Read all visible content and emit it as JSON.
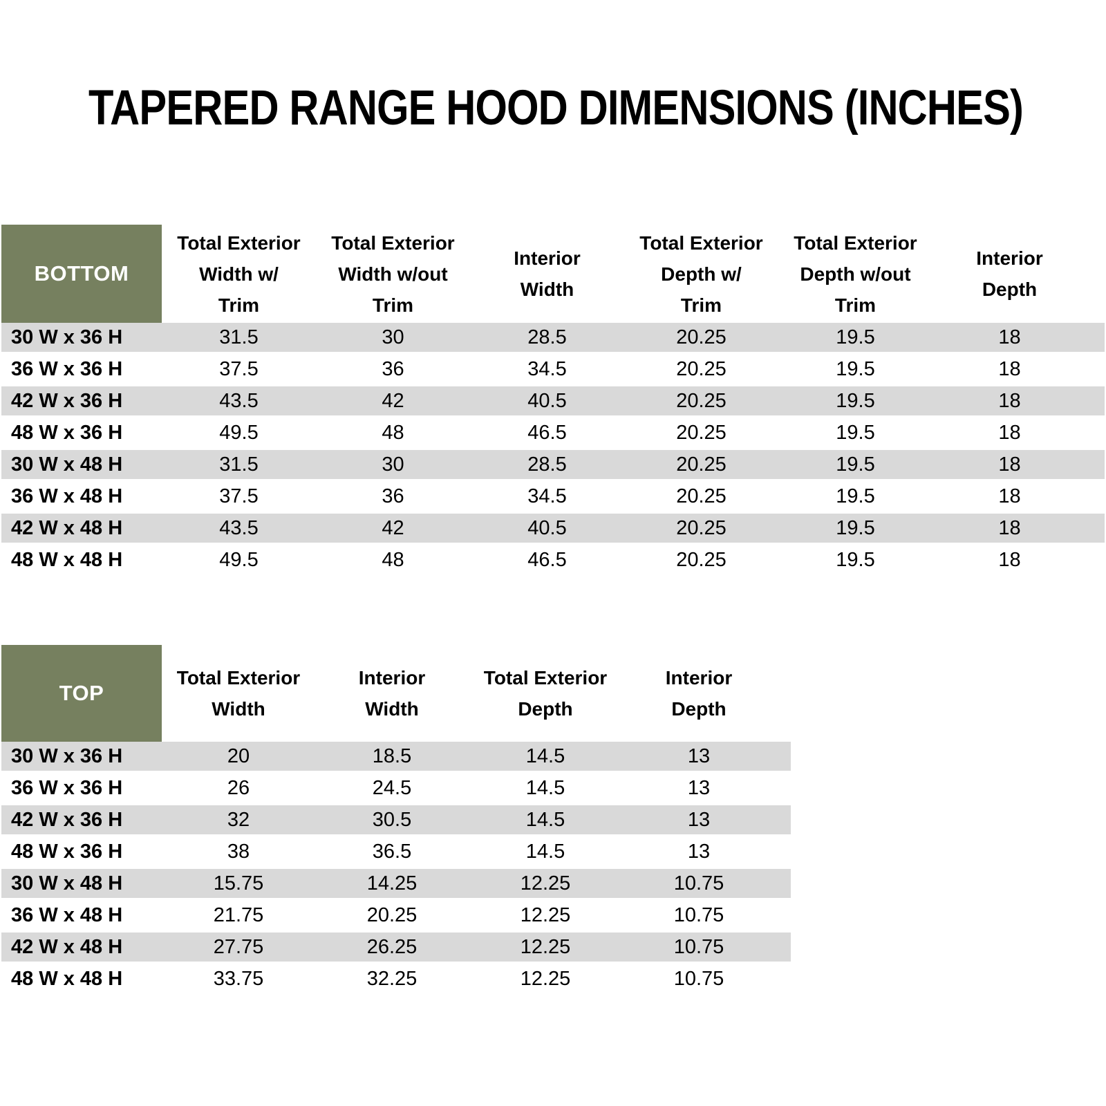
{
  "title": "TAPERED RANGE HOOD DIMENSIONS (INCHES)",
  "colors": {
    "header_green": "#76805F",
    "row_stripe_gray": "#D9D9D9",
    "text": "#000000",
    "corner_text": "#FFFFFF"
  },
  "bottom_table": {
    "corner_label": "BOTTOM",
    "columns": [
      "Total Exterior\nWidth w/\nTrim",
      "Total Exterior\nWidth w/out\nTrim",
      "Interior\nWidth",
      "Total Exterior\nDepth w/\nTrim",
      "Total Exterior\nDepth w/out\nTrim",
      "Interior\nDepth"
    ],
    "rows": [
      {
        "label": "30 W x 36 H",
        "values": [
          "31.5",
          "30",
          "28.5",
          "20.25",
          "19.5",
          "18"
        ]
      },
      {
        "label": "36 W x 36 H",
        "values": [
          "37.5",
          "36",
          "34.5",
          "20.25",
          "19.5",
          "18"
        ]
      },
      {
        "label": "42 W x 36 H",
        "values": [
          "43.5",
          "42",
          "40.5",
          "20.25",
          "19.5",
          "18"
        ]
      },
      {
        "label": "48 W x 36 H",
        "values": [
          "49.5",
          "48",
          "46.5",
          "20.25",
          "19.5",
          "18"
        ]
      },
      {
        "label": "30 W x 48 H",
        "values": [
          "31.5",
          "30",
          "28.5",
          "20.25",
          "19.5",
          "18"
        ]
      },
      {
        "label": "36 W x 48 H",
        "values": [
          "37.5",
          "36",
          "34.5",
          "20.25",
          "19.5",
          "18"
        ]
      },
      {
        "label": "42 W x 48 H",
        "values": [
          "43.5",
          "42",
          "40.5",
          "20.25",
          "19.5",
          "18"
        ]
      },
      {
        "label": "48 W x 48 H",
        "values": [
          "49.5",
          "48",
          "46.5",
          "20.25",
          "19.5",
          "18"
        ]
      }
    ]
  },
  "top_table": {
    "corner_label": "TOP",
    "columns": [
      "Total Exterior\nWidth",
      "Interior\nWidth",
      "Total Exterior\nDepth",
      "Interior\nDepth"
    ],
    "rows": [
      {
        "label": "30 W x 36 H",
        "values": [
          "20",
          "18.5",
          "14.5",
          "13"
        ]
      },
      {
        "label": "36 W x 36 H",
        "values": [
          "26",
          "24.5",
          "14.5",
          "13"
        ]
      },
      {
        "label": "42 W x 36 H",
        "values": [
          "32",
          "30.5",
          "14.5",
          "13"
        ]
      },
      {
        "label": "48 W x 36 H",
        "values": [
          "38",
          "36.5",
          "14.5",
          "13"
        ]
      },
      {
        "label": "30 W x 48 H",
        "values": [
          "15.75",
          "14.25",
          "12.25",
          "10.75"
        ]
      },
      {
        "label": "36 W x 48 H",
        "values": [
          "21.75",
          "20.25",
          "12.25",
          "10.75"
        ]
      },
      {
        "label": "42 W x 48 H",
        "values": [
          "27.75",
          "26.25",
          "12.25",
          "10.75"
        ]
      },
      {
        "label": "48 W x 48 H",
        "values": [
          "33.75",
          "32.25",
          "12.25",
          "10.75"
        ]
      }
    ]
  }
}
